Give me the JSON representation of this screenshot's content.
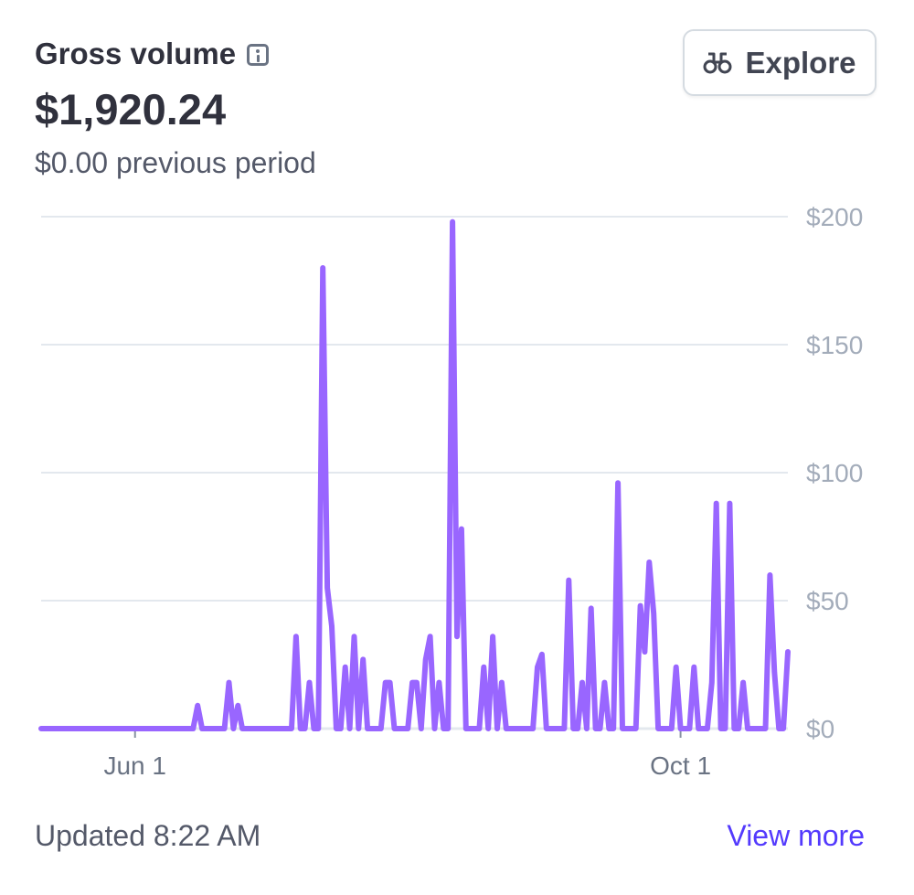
{
  "header": {
    "title": "Gross volume",
    "amount": "$1,920.24",
    "previous": "$0.00 previous period",
    "explore_label": "Explore"
  },
  "footer": {
    "updated": "Updated 8:22 AM",
    "view_more": "View more"
  },
  "icons": [
    "info-icon",
    "binoculars-icon"
  ],
  "colors": {
    "line": "#9966ff",
    "grid": "#e3e8ee",
    "link": "#533afd"
  },
  "chart_data": {
    "type": "line",
    "ylim": [
      0,
      200
    ],
    "yticks": [
      0,
      50,
      100,
      150,
      200
    ],
    "ytick_labels": [
      "$0",
      "$50",
      "$100",
      "$150",
      "$200"
    ],
    "xtick_labels": [
      "Jun 1",
      "Oct 1"
    ],
    "grid": true,
    "x": [
      "05-11",
      "05-12",
      "05-13",
      "05-14",
      "05-15",
      "05-16",
      "05-17",
      "05-18",
      "05-19",
      "05-20",
      "05-21",
      "05-22",
      "05-23",
      "05-24",
      "05-25",
      "05-26",
      "05-27",
      "05-28",
      "05-29",
      "05-30",
      "05-31",
      "06-01",
      "06-02",
      "06-03",
      "06-04",
      "06-05",
      "06-06",
      "06-07",
      "06-08",
      "06-09",
      "06-10",
      "06-11",
      "06-12",
      "06-13",
      "06-14",
      "06-15",
      "06-16",
      "06-17",
      "06-18",
      "06-19",
      "06-20",
      "06-21",
      "06-22",
      "06-23",
      "06-24",
      "06-25",
      "06-26",
      "06-27",
      "06-28",
      "06-29",
      "06-30",
      "07-01",
      "07-02",
      "07-03",
      "07-04",
      "07-05",
      "07-06",
      "07-07",
      "07-08",
      "07-09",
      "07-10",
      "07-11",
      "07-12",
      "07-13",
      "07-14",
      "07-15",
      "07-16",
      "07-17",
      "07-18",
      "07-19",
      "07-20",
      "07-21",
      "07-22",
      "07-23",
      "07-24",
      "07-25",
      "07-26",
      "07-27",
      "07-28",
      "07-29",
      "07-30",
      "07-31",
      "08-01",
      "08-02",
      "08-03",
      "08-04",
      "08-05",
      "08-06",
      "08-07",
      "08-08",
      "08-09",
      "08-10",
      "08-11",
      "08-12",
      "08-13",
      "08-14",
      "08-15",
      "08-16",
      "08-17",
      "08-18",
      "08-19",
      "08-20",
      "08-21",
      "08-22",
      "08-23",
      "08-24",
      "08-25",
      "08-26",
      "08-27",
      "08-28",
      "08-29",
      "08-30",
      "08-31",
      "09-01",
      "09-02",
      "09-03",
      "09-04",
      "09-05",
      "09-06",
      "09-07",
      "09-08",
      "09-09",
      "09-10",
      "09-11",
      "09-12",
      "09-13",
      "09-14",
      "09-15",
      "09-16",
      "09-17",
      "09-18",
      "09-19",
      "09-20",
      "09-21",
      "09-22",
      "09-23",
      "09-24",
      "09-25",
      "09-26",
      "09-27",
      "09-28",
      "09-29",
      "09-30",
      "10-01",
      "10-02",
      "10-03",
      "10-04",
      "10-05",
      "10-06",
      "10-07",
      "10-08",
      "10-09",
      "10-10",
      "10-11",
      "10-12",
      "10-13",
      "10-14",
      "10-15",
      "10-16",
      "10-17",
      "10-18",
      "10-19",
      "10-20",
      "10-21",
      "10-22",
      "10-23",
      "10-24",
      "10-25"
    ],
    "series": [
      {
        "values": [
          0,
          0,
          0,
          0,
          0,
          0,
          0,
          0,
          0,
          0,
          0,
          0,
          0,
          0,
          0,
          0,
          0,
          0,
          0,
          0,
          0,
          0,
          0,
          0,
          0,
          0,
          0,
          0,
          0,
          0,
          0,
          0,
          0,
          0,
          0,
          9,
          0,
          0,
          0,
          0,
          0,
          0,
          18,
          0,
          9,
          0,
          0,
          0,
          0,
          0,
          0,
          0,
          0,
          0,
          0,
          0,
          0,
          36,
          0,
          0,
          18,
          0,
          0,
          180,
          55,
          40,
          0,
          0,
          24,
          0,
          36,
          0,
          27,
          0,
          0,
          0,
          0,
          18,
          18,
          0,
          0,
          0,
          0,
          18,
          18,
          0,
          27,
          36,
          0,
          18,
          0,
          0,
          198,
          36,
          78,
          0,
          0,
          0,
          0,
          24,
          0,
          36,
          0,
          18,
          0,
          0,
          0,
          0,
          0,
          0,
          0,
          24,
          29,
          0,
          0,
          0,
          0,
          0,
          58,
          0,
          0,
          18,
          0,
          47,
          0,
          0,
          18,
          0,
          0,
          96,
          0,
          0,
          0,
          0,
          48,
          30,
          65,
          45,
          0,
          0,
          0,
          0,
          24,
          0,
          0,
          0,
          24,
          0,
          0,
          0,
          18,
          88,
          0,
          0,
          88,
          0,
          0,
          18,
          0,
          0,
          0,
          0,
          0,
          60,
          22,
          0,
          0,
          30
        ]
      }
    ]
  }
}
